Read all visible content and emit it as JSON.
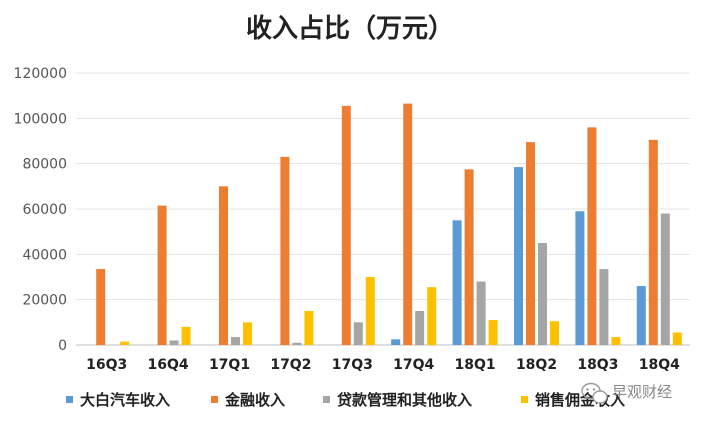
{
  "chart_data": {
    "type": "bar",
    "title": "收入占比（万元）",
    "categories": [
      "16Q3",
      "16Q4",
      "17Q1",
      "17Q2",
      "17Q3",
      "17Q4",
      "18Q1",
      "18Q2",
      "18Q3",
      "18Q4"
    ],
    "ylim": [
      0,
      120000
    ],
    "yticks": [
      0,
      20000,
      40000,
      60000,
      80000,
      100000,
      120000
    ],
    "series": [
      {
        "name": "大白汽车收入",
        "color": "#5b9bd5",
        "values": [
          0,
          0,
          0,
          0,
          0,
          2500,
          55000,
          78500,
          59000,
          26000
        ]
      },
      {
        "name": "金融收入",
        "color": "#ed7d31",
        "values": [
          33500,
          61500,
          70000,
          83000,
          105500,
          106500,
          77500,
          89500,
          96000,
          90500
        ]
      },
      {
        "name": "贷款管理和其他收入",
        "color": "#a5a5a5",
        "values": [
          0,
          2000,
          3500,
          1000,
          10000,
          15000,
          28000,
          45000,
          33500,
          58000
        ]
      },
      {
        "name": "销售佣金收入",
        "color": "#ffc000",
        "values": [
          1500,
          8000,
          10000,
          15000,
          30000,
          25500,
          11000,
          10500,
          3500,
          5500
        ]
      }
    ]
  },
  "watermark": {
    "text": "早观财经",
    "icon": "wechat-icon"
  }
}
